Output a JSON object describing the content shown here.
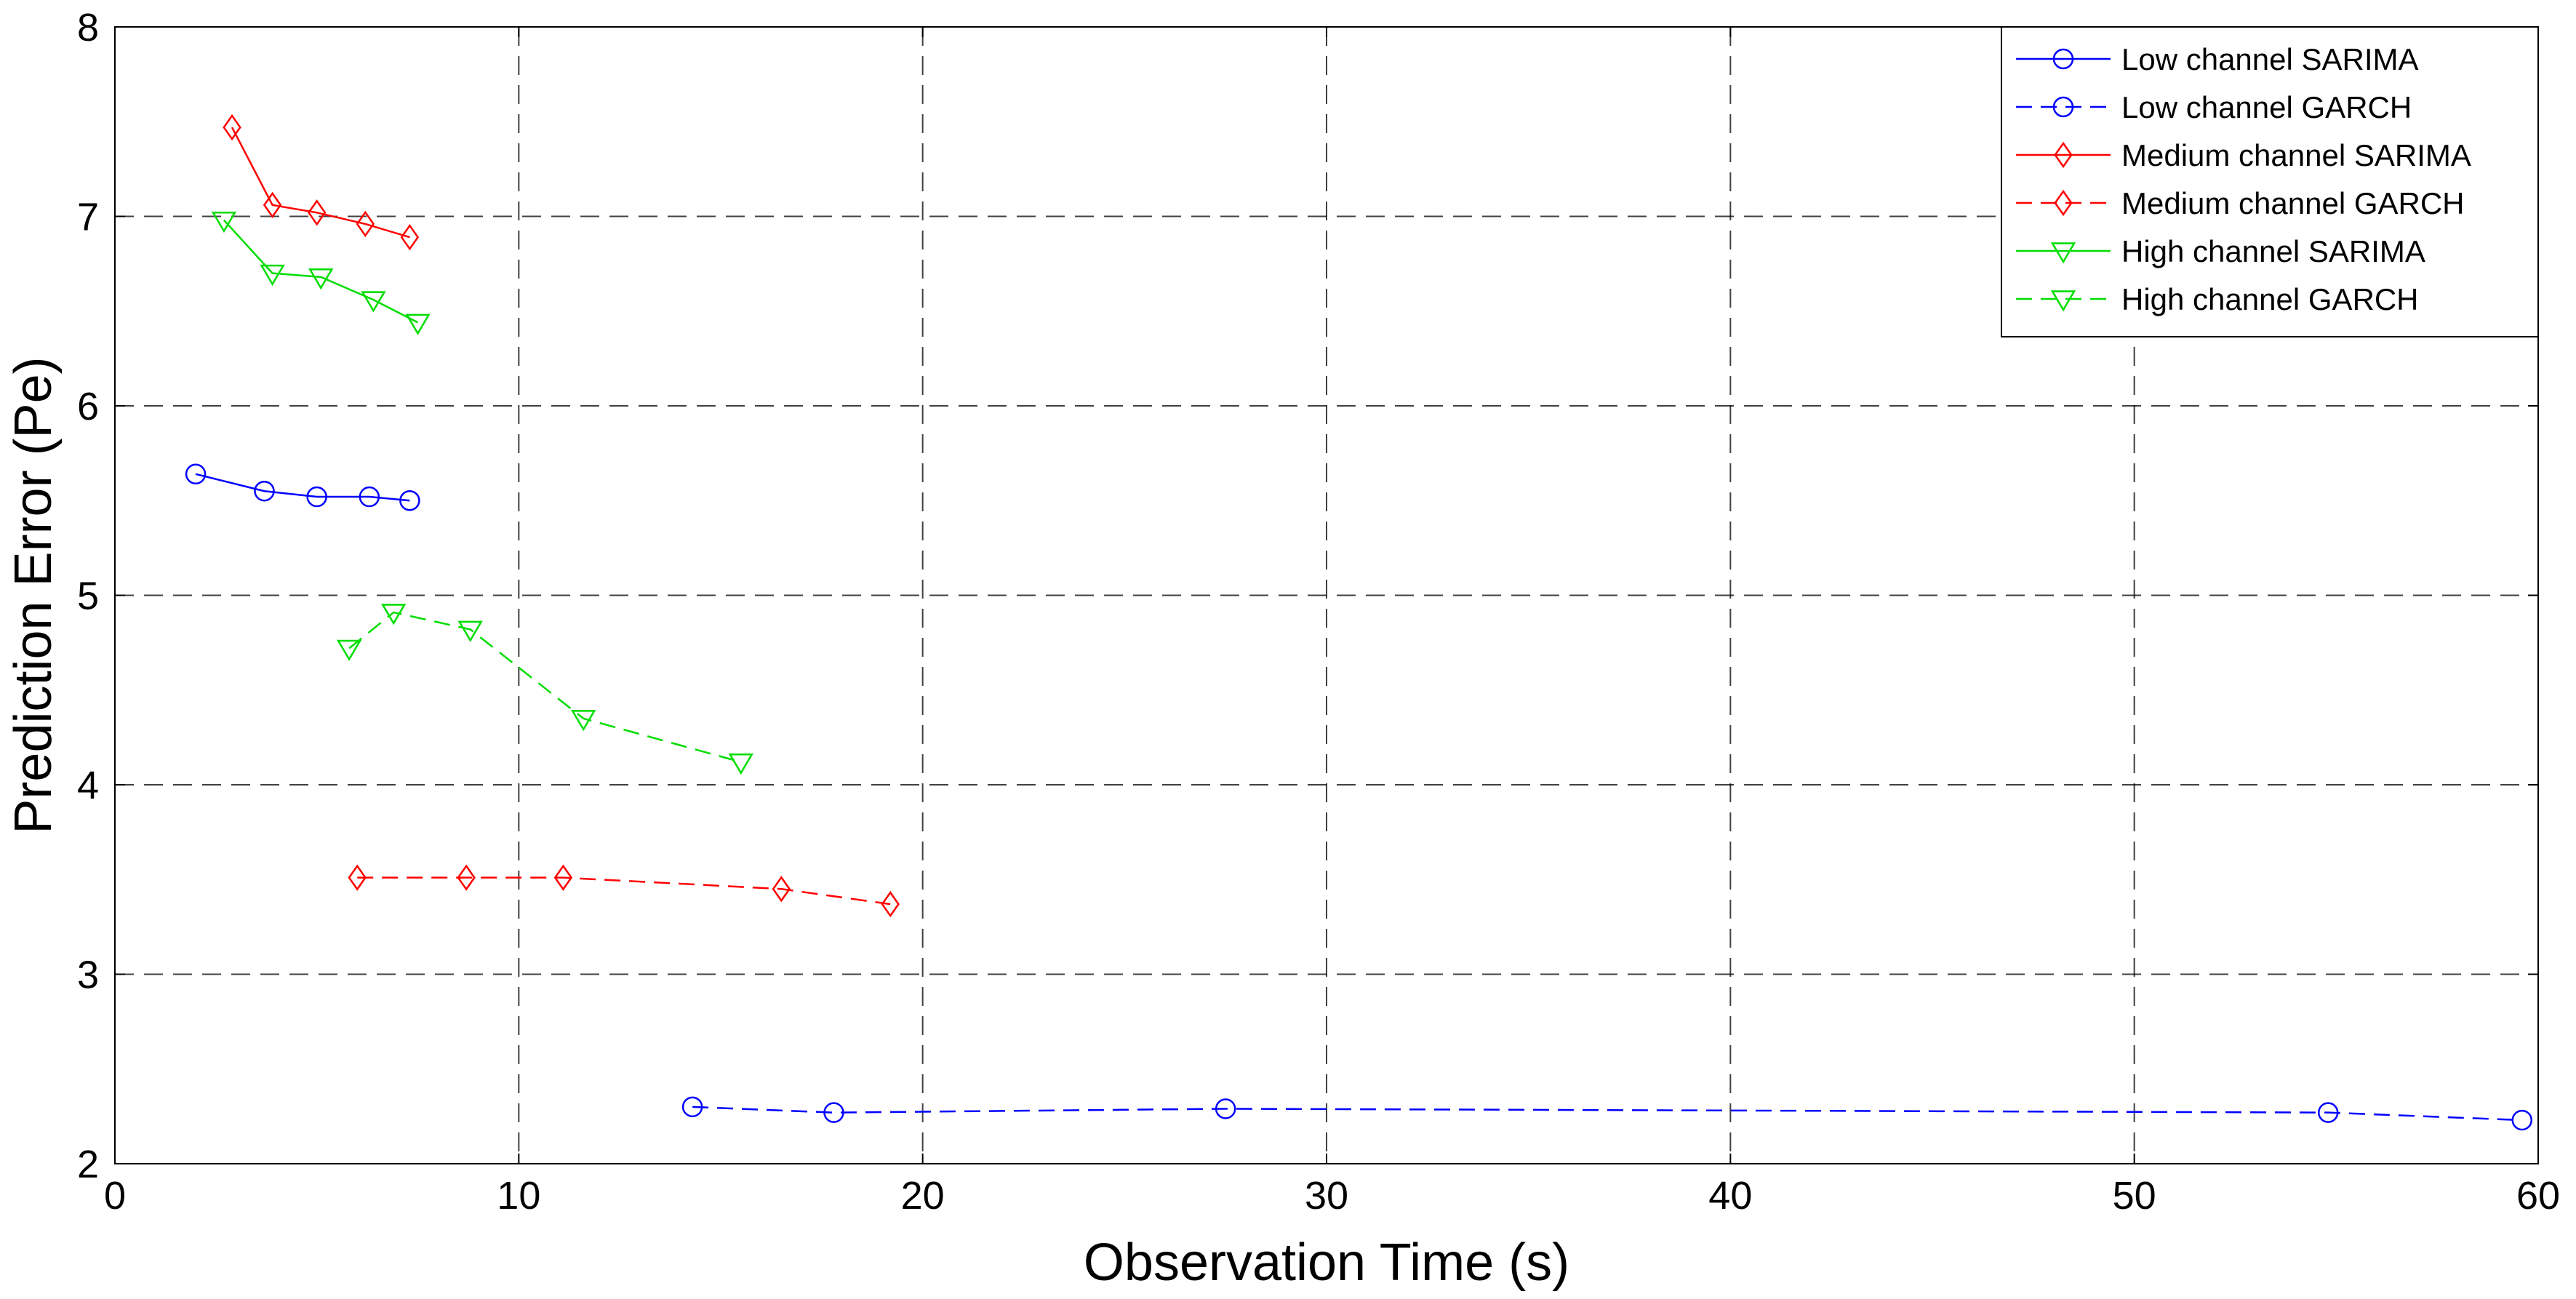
{
  "chart_data": {
    "type": "line",
    "title": "",
    "xlabel": "Observation Time (s)",
    "ylabel": "Prediction Error (Pe)",
    "xlim": [
      0,
      60
    ],
    "ylim": [
      2,
      8
    ],
    "xticks": [
      0,
      10,
      20,
      30,
      40,
      50,
      60
    ],
    "yticks": [
      2,
      3,
      4,
      5,
      6,
      7,
      8
    ],
    "grid": true,
    "legend_position": "top-right",
    "series": [
      {
        "name": "Low channel SARIMA",
        "color": "#0000ff",
        "line_style": "solid",
        "marker": "circle",
        "x": [
          2.0,
          3.7,
          5.0,
          6.3,
          7.3
        ],
        "y": [
          5.64,
          5.55,
          5.52,
          5.52,
          5.5
        ]
      },
      {
        "name": "Low channel GARCH",
        "color": "#0000ff",
        "line_style": "dashed",
        "marker": "circle",
        "x": [
          14.3,
          17.8,
          27.5,
          54.8,
          59.6
        ],
        "y": [
          2.3,
          2.27,
          2.29,
          2.27,
          2.23
        ]
      },
      {
        "name": "Medium channel SARIMA",
        "color": "#ff0000",
        "line_style": "solid",
        "marker": "diamond",
        "x": [
          2.9,
          3.9,
          5.0,
          6.2,
          7.3
        ],
        "y": [
          7.47,
          7.06,
          7.02,
          6.96,
          6.89
        ]
      },
      {
        "name": "Medium channel GARCH",
        "color": "#ff0000",
        "line_style": "dashed",
        "marker": "diamond",
        "x": [
          6.0,
          8.7,
          11.1,
          16.5,
          19.2
        ],
        "y": [
          3.51,
          3.51,
          3.51,
          3.45,
          3.37
        ]
      },
      {
        "name": "High channel SARIMA",
        "color": "#00dd00",
        "line_style": "solid",
        "marker": "triangle-down",
        "x": [
          2.7,
          3.9,
          5.1,
          6.4,
          7.5
        ],
        "y": [
          6.98,
          6.7,
          6.68,
          6.56,
          6.44
        ]
      },
      {
        "name": "High channel GARCH",
        "color": "#00dd00",
        "line_style": "dashed",
        "marker": "triangle-down",
        "x": [
          5.8,
          6.9,
          8.8,
          11.6,
          15.5
        ],
        "y": [
          4.72,
          4.91,
          4.82,
          4.35,
          4.12
        ]
      }
    ]
  }
}
